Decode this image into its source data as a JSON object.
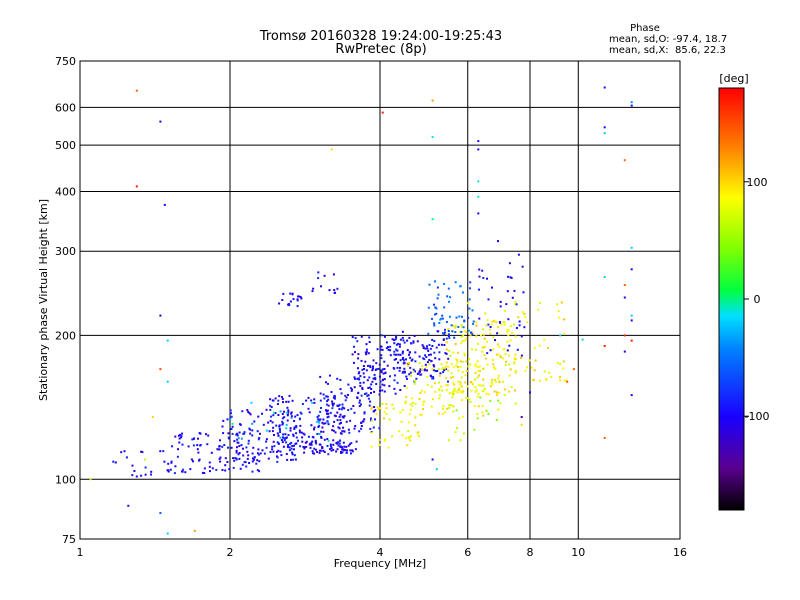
{
  "chart_data": {
    "type": "scatter",
    "title": "Tromsø 20160328 19:24:00-19:25:43",
    "subtitle": "RwPretec (8p)",
    "xlabel": "Frequency [MHz]",
    "ylabel": "Stationary phase Virtual Height [km]",
    "xscale": "log",
    "yscale": "log",
    "xlim": [
      1,
      16
    ],
    "ylim": [
      75,
      750
    ],
    "xticks": [
      1,
      2,
      4,
      6,
      8,
      10,
      16
    ],
    "xtick_labels": [
      "1",
      "2",
      "4",
      "6",
      "8",
      "10",
      "16"
    ],
    "yticks": [
      75,
      100,
      200,
      300,
      400,
      500,
      600,
      750
    ],
    "ytick_labels": [
      "75",
      "100",
      "200",
      "300",
      "400",
      "500",
      "600",
      "750"
    ],
    "grid": true,
    "stats": {
      "heading": "Phase",
      "line_o": "mean, sd,O: -97.4, 18.7",
      "line_x": "mean, sd,X:  85.6, 22.3"
    },
    "colorbar": {
      "label": "[deg]",
      "range": [
        -180,
        180
      ],
      "ticks": [
        100,
        0,
        -100
      ],
      "tick_labels": [
        "100",
        "0",
        "-100"
      ]
    },
    "clusters": [
      {
        "freq": [
          1.15,
          1.6
        ],
        "height": [
          100,
          115
        ],
        "phase": -100,
        "n": 25
      },
      {
        "freq": [
          1.5,
          2.3
        ],
        "height": [
          103,
          125
        ],
        "phase": -98,
        "n": 90
      },
      {
        "freq": [
          1.9,
          2.8
        ],
        "height": [
          108,
          140
        ],
        "phase": -100,
        "n": 130
      },
      {
        "freq": [
          2.4,
          3.4
        ],
        "height": [
          112,
          150
        ],
        "phase": -97,
        "n": 150
      },
      {
        "freq": [
          2.8,
          3.6
        ],
        "height": [
          113,
          120
        ],
        "phase": -105,
        "n": 60
      },
      {
        "freq": [
          3.0,
          4.0
        ],
        "height": [
          125,
          165
        ],
        "phase": -95,
        "n": 110
      },
      {
        "freq": [
          3.5,
          4.5
        ],
        "height": [
          150,
          200
        ],
        "phase": -100,
        "n": 120
      },
      {
        "freq": [
          4.0,
          5.5
        ],
        "height": [
          160,
          205
        ],
        "phase": -98,
        "n": 130
      },
      {
        "freq": [
          3.8,
          4.8
        ],
        "height": [
          115,
          145
        ],
        "phase": 85,
        "n": 45
      },
      {
        "freq": [
          4.5,
          6.5
        ],
        "height": [
          135,
          175
        ],
        "phase": 85,
        "n": 110
      },
      {
        "freq": [
          5.4,
          7.5
        ],
        "height": [
          150,
          215
        ],
        "phase": 88,
        "n": 150
      },
      {
        "freq": [
          5.0,
          6.2
        ],
        "height": [
          195,
          260
        ],
        "phase": -60,
        "n": 60
      },
      {
        "freq": [
          6.0,
          9.5
        ],
        "height": [
          160,
          235
        ],
        "phase": 90,
        "n": 70
      },
      {
        "freq": [
          6.3,
          7.8
        ],
        "height": [
          180,
          290
        ],
        "phase": -100,
        "n": 40
      },
      {
        "freq": [
          2.5,
          2.8
        ],
        "height": [
          230,
          245
        ],
        "phase": -100,
        "n": 18
      },
      {
        "freq": [
          2.9,
          3.3
        ],
        "height": [
          245,
          275
        ],
        "phase": -100,
        "n": 12
      },
      {
        "freq": [
          5.5,
          7.5
        ],
        "height": [
          120,
          150
        ],
        "phase": 60,
        "n": 20
      },
      {
        "freq": [
          2.0,
          3.2
        ],
        "height": [
          120,
          145
        ],
        "phase": -20,
        "n": 20
      }
    ],
    "sparse_points": [
      {
        "freq": 1.3,
        "height": 650,
        "phase": 140
      },
      {
        "freq": 1.3,
        "height": 410,
        "phase": 170
      },
      {
        "freq": 1.45,
        "height": 560,
        "phase": -100
      },
      {
        "freq": 1.48,
        "height": 375,
        "phase": -100
      },
      {
        "freq": 1.45,
        "height": 220,
        "phase": -100
      },
      {
        "freq": 1.5,
        "height": 195,
        "phase": -20
      },
      {
        "freq": 1.45,
        "height": 170,
        "phase": 150
      },
      {
        "freq": 1.5,
        "height": 160,
        "phase": -20
      },
      {
        "freq": 1.4,
        "height": 135,
        "phase": 100
      },
      {
        "freq": 1.35,
        "height": 110,
        "phase": 60
      },
      {
        "freq": 1.25,
        "height": 88,
        "phase": -100
      },
      {
        "freq": 1.45,
        "height": 85,
        "phase": -60
      },
      {
        "freq": 1.5,
        "height": 77,
        "phase": -20
      },
      {
        "freq": 1.7,
        "height": 78,
        "phase": 120
      },
      {
        "freq": 1.05,
        "height": 100,
        "phase": 60
      },
      {
        "freq": 3.2,
        "height": 490,
        "phase": 100
      },
      {
        "freq": 4.05,
        "height": 585,
        "phase": 170
      },
      {
        "freq": 5.1,
        "height": 620,
        "phase": 120
      },
      {
        "freq": 5.1,
        "height": 520,
        "phase": -10
      },
      {
        "freq": 5.1,
        "height": 350,
        "phase": 0
      },
      {
        "freq": 6.3,
        "height": 510,
        "phase": -100
      },
      {
        "freq": 6.3,
        "height": 490,
        "phase": -100
      },
      {
        "freq": 6.3,
        "height": 420,
        "phase": -10
      },
      {
        "freq": 6.3,
        "height": 390,
        "phase": -10
      },
      {
        "freq": 6.3,
        "height": 360,
        "phase": -100
      },
      {
        "freq": 6.9,
        "height": 315,
        "phase": -100
      },
      {
        "freq": 7.6,
        "height": 295,
        "phase": -100
      },
      {
        "freq": 11.3,
        "height": 660,
        "phase": -100
      },
      {
        "freq": 11.3,
        "height": 545,
        "phase": -100
      },
      {
        "freq": 11.3,
        "height": 530,
        "phase": -20
      },
      {
        "freq": 12.8,
        "height": 615,
        "phase": -40
      },
      {
        "freq": 12.8,
        "height": 605,
        "phase": -100
      },
      {
        "freq": 12.4,
        "height": 465,
        "phase": 140
      },
      {
        "freq": 12.8,
        "height": 305,
        "phase": -20
      },
      {
        "freq": 12.8,
        "height": 275,
        "phase": -100
      },
      {
        "freq": 12.4,
        "height": 255,
        "phase": 140
      },
      {
        "freq": 12.4,
        "height": 240,
        "phase": -100
      },
      {
        "freq": 11.3,
        "height": 265,
        "phase": -20
      },
      {
        "freq": 12.8,
        "height": 220,
        "phase": -20
      },
      {
        "freq": 12.8,
        "height": 215,
        "phase": -100
      },
      {
        "freq": 12.4,
        "height": 200,
        "phase": 170
      },
      {
        "freq": 12.8,
        "height": 195,
        "phase": 170
      },
      {
        "freq": 12.4,
        "height": 185,
        "phase": -100
      },
      {
        "freq": 11.3,
        "height": 190,
        "phase": 170
      },
      {
        "freq": 12.8,
        "height": 150,
        "phase": -100
      },
      {
        "freq": 11.3,
        "height": 122,
        "phase": 140
      },
      {
        "freq": 10.2,
        "height": 196,
        "phase": -20
      },
      {
        "freq": 9.2,
        "height": 200,
        "phase": -20
      },
      {
        "freq": 5.2,
        "height": 105,
        "phase": -20
      },
      {
        "freq": 5.1,
        "height": 110,
        "phase": -100
      },
      {
        "freq": 7.7,
        "height": 135,
        "phase": -140
      },
      {
        "freq": 7.7,
        "height": 130,
        "phase": 100
      },
      {
        "freq": 8.0,
        "height": 152,
        "phase": -100
      },
      {
        "freq": 9.5,
        "height": 160,
        "phase": 150
      },
      {
        "freq": 9.8,
        "height": 170,
        "phase": 140
      }
    ]
  }
}
